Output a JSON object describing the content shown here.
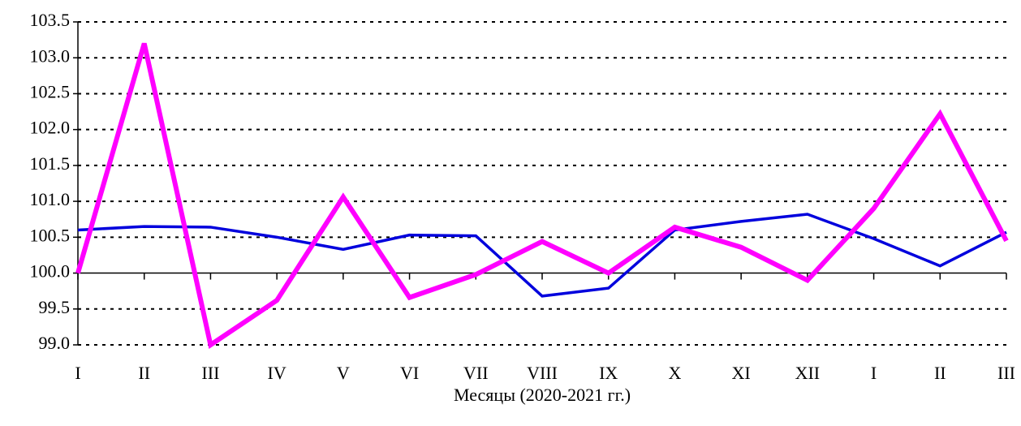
{
  "chart_data": {
    "type": "line",
    "xlabel": "Месяцы (2020-2021 гг.)",
    "categories": [
      "I",
      "II",
      "III",
      "IV",
      "V",
      "VI",
      "VII",
      "VIII",
      "IX",
      "X",
      "XI",
      "XII",
      "I",
      "II",
      "III"
    ],
    "series": [
      {
        "color": "#0000dd",
        "values": [
          100.6,
          100.65,
          100.64,
          100.5,
          100.33,
          100.53,
          100.52,
          99.68,
          99.79,
          100.6,
          100.72,
          100.82,
          100.48,
          100.1,
          100.57
        ]
      },
      {
        "color": "#ff00ff",
        "values": [
          100.0,
          103.2,
          99.0,
          99.62,
          101.06,
          99.66,
          99.98,
          100.44,
          100.0,
          100.64,
          100.36,
          99.9,
          100.9,
          102.22,
          100.45
        ]
      }
    ],
    "ylim": [
      99,
      103.5
    ],
    "yticks": [
      {
        "value": 99,
        "label": "99.0"
      },
      99.5,
      {
        "value": 100,
        "label": "100.0"
      },
      100.5,
      {
        "value": 101,
        "label": "101.0"
      },
      101.5,
      {
        "value": 102,
        "label": "102.0"
      },
      102.5,
      {
        "value": 103,
        "label": "103.0"
      },
      103.5
    ],
    "xaxis_crosses": 100,
    "grid": true
  }
}
